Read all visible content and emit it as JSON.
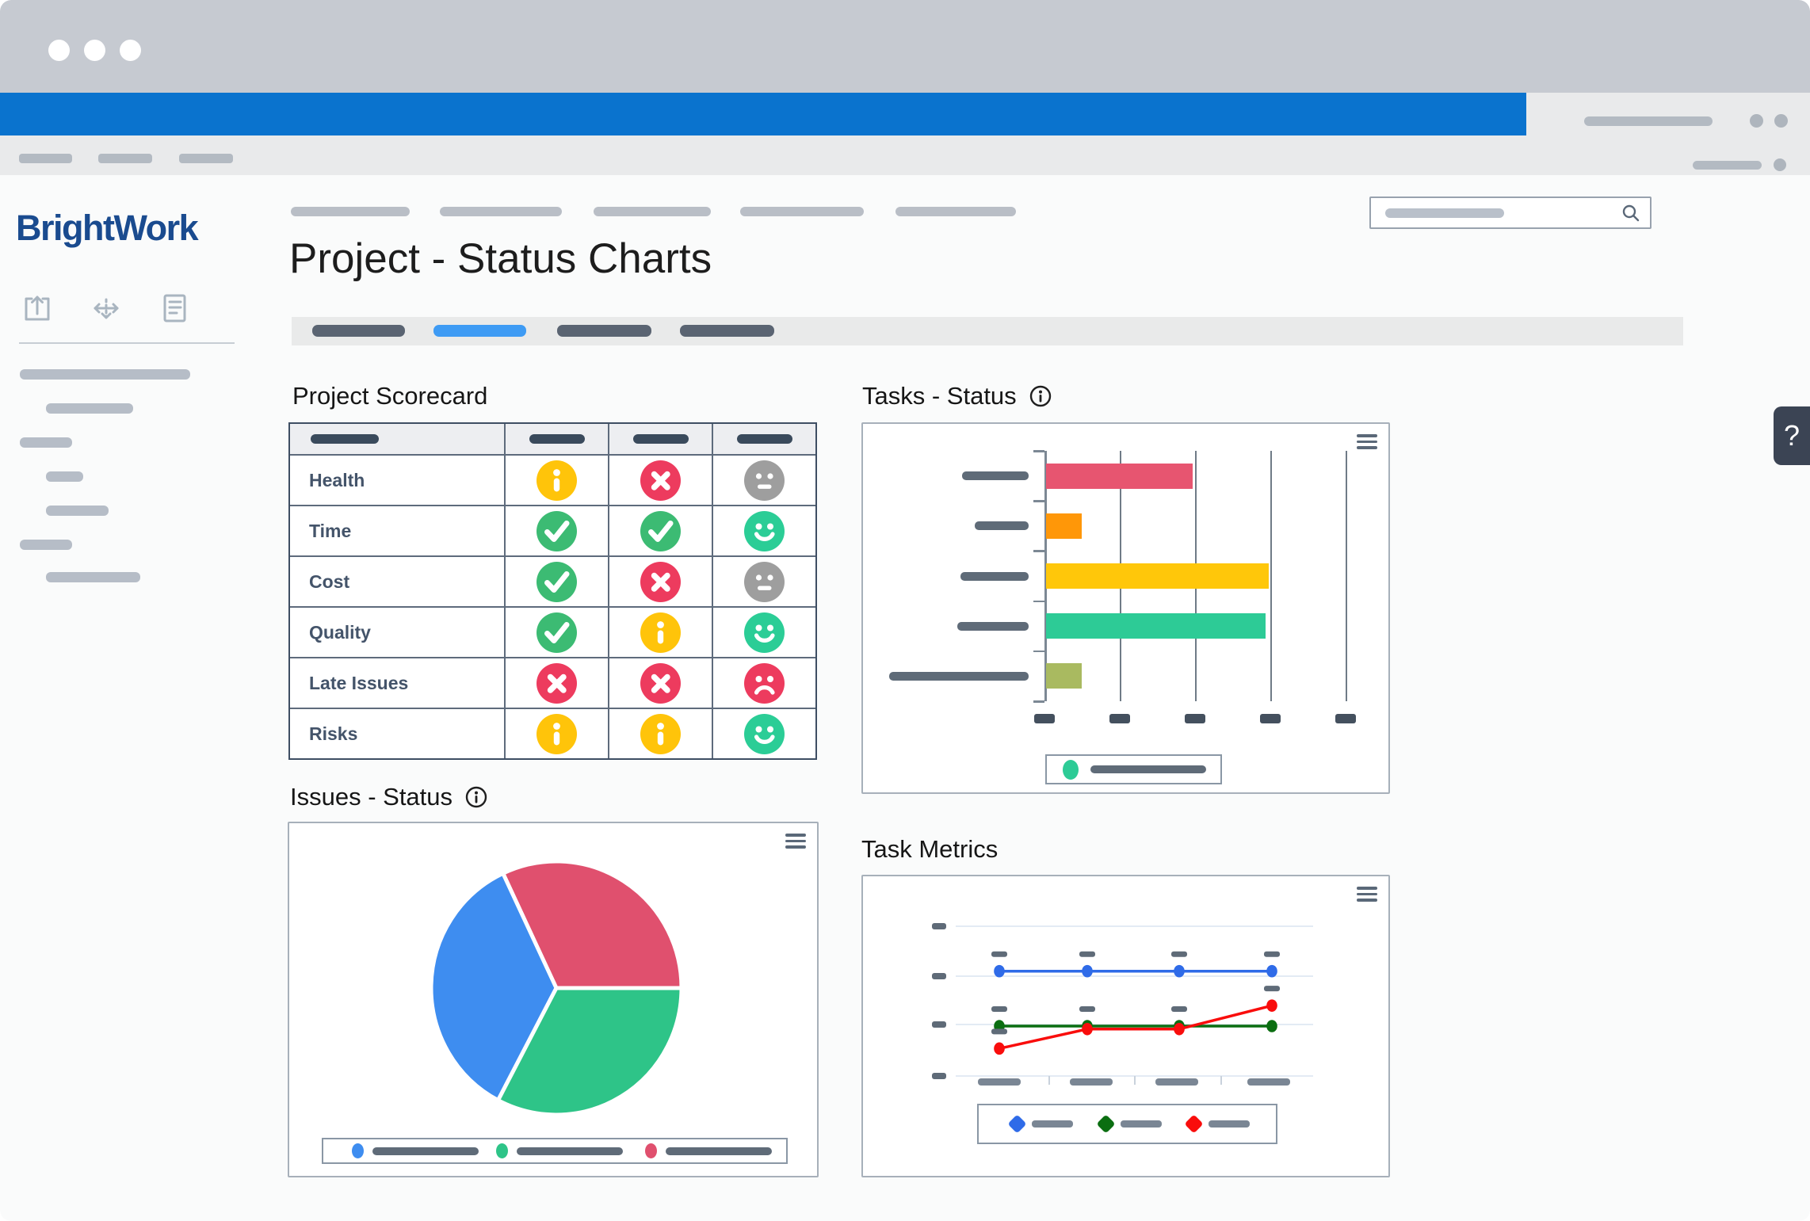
{
  "sidebar": {
    "logo": "BrightWork"
  },
  "header": {
    "title": "Project - Status Charts"
  },
  "help": {
    "label": "?"
  },
  "sections": {
    "scorecard": {
      "title": "Project Scorecard",
      "info_icon": false
    },
    "tasks": {
      "title": "Tasks - Status",
      "info_icon": true
    },
    "issues": {
      "title": "Issues - Status",
      "info_icon": true
    },
    "metrics": {
      "title": "Task Metrics",
      "info_icon": false
    }
  },
  "scorecard": {
    "columns": 4,
    "rows": [
      {
        "label": "Health",
        "icons": [
          "info-yellow",
          "x-red",
          "meh-gray"
        ]
      },
      {
        "label": "Time",
        "icons": [
          "check-green",
          "check-green",
          "smile-green"
        ]
      },
      {
        "label": "Cost",
        "icons": [
          "check-green",
          "x-red",
          "meh-gray"
        ]
      },
      {
        "label": "Quality",
        "icons": [
          "check-green",
          "info-yellow",
          "smile-green"
        ]
      },
      {
        "label": "Late Issues",
        "icons": [
          "x-red",
          "x-red",
          "frown-red"
        ]
      },
      {
        "label": "Risks",
        "icons": [
          "info-yellow",
          "info-yellow",
          "smile-green"
        ]
      }
    ],
    "status_colors": {
      "yellow": "#FFC40A",
      "red": "#ED3B5E",
      "green": "#3CBB73",
      "teal": "#2BCD96",
      "gray": "#9E9E9E"
    }
  },
  "chart_data": [
    {
      "id": "tasks-status",
      "type": "bar",
      "orientation": "horizontal",
      "title": "Tasks - Status",
      "categories": [
        "",
        "",
        "",
        "",
        ""
      ],
      "values": [
        1.95,
        0.47,
        2.96,
        2.92,
        0.47
      ],
      "colors": [
        "#E75570",
        "#FF9708",
        "#FFC70A",
        "#2DCB96",
        "#A9BA60"
      ],
      "xlim": [
        0,
        4
      ],
      "gridlines": true,
      "category_label_placeholder_widths": [
        84,
        68,
        86,
        90,
        176
      ],
      "legend": {
        "position": "bottom",
        "marker_color": "#2DCB96"
      }
    },
    {
      "id": "issues-status",
      "type": "pie",
      "title": "Issues - Status",
      "start_angle_deg_from_east_ccw": 0,
      "slices": [
        {
          "name": "",
          "percent": 32.0,
          "color": "#E0506E"
        },
        {
          "name": "",
          "percent": 35.3,
          "color": "#3E8DF0"
        },
        {
          "name": "",
          "percent": 32.7,
          "color": "#2EC488"
        }
      ],
      "legend": {
        "position": "bottom",
        "marker_colors": [
          "#3E8DF0",
          "#2EC488",
          "#E0506E"
        ]
      }
    },
    {
      "id": "task-metrics",
      "type": "line",
      "title": "Task Metrics",
      "x": [
        1,
        2,
        3,
        4
      ],
      "ylim": [
        0.5,
        4.5
      ],
      "gridlines": "horizontal",
      "series": [
        {
          "name": "",
          "color": "#2F6BE8",
          "values": [
            3.1,
            3.1,
            3.1,
            3.1
          ],
          "labels": [
            true,
            true,
            true,
            true
          ]
        },
        {
          "name": "",
          "color": "#0B6E11",
          "values": [
            2.0,
            2.0,
            2.0,
            2.0
          ],
          "labels": [
            true,
            true,
            true,
            false
          ]
        },
        {
          "name": "",
          "color": "#F90D0C",
          "values": [
            1.55,
            1.94,
            1.94,
            2.41
          ],
          "labels": [
            true,
            false,
            false,
            true
          ]
        }
      ],
      "legend": {
        "position": "bottom"
      }
    }
  ],
  "colors": {
    "suite_bar": "#0A73CE",
    "active_tab": "#3E9BF4",
    "logo_navy": "#1A4B8F",
    "slate": "#44546A"
  }
}
